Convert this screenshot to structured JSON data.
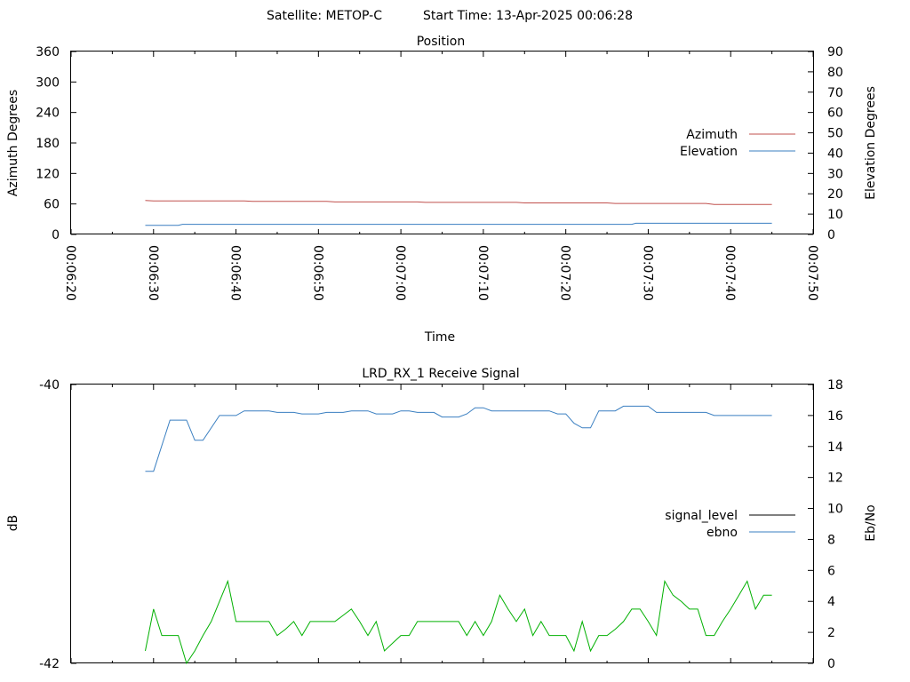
{
  "header": {
    "satellite": "Satellite: METOP-C",
    "start_time": "Start Time: 13-Apr-2025 00:06:28"
  },
  "chart_data": [
    {
      "type": "line",
      "title": "Position",
      "xlabel": "Time",
      "ylabel": "Azimuth Degrees",
      "y2label": "Elevation Degrees",
      "x_ticks": [
        "00:06:20",
        "00:06:30",
        "00:06:40",
        "00:06:50",
        "00:07:00",
        "00:07:10",
        "00:07:20",
        "00:07:30",
        "00:07:40",
        "00:07:50"
      ],
      "xlim": [
        380,
        470
      ],
      "ylim": [
        0,
        360
      ],
      "y_ticks": [
        0,
        60,
        120,
        180,
        240,
        300,
        360
      ],
      "y2lim": [
        0,
        90
      ],
      "y2_ticks": [
        0,
        10,
        20,
        30,
        40,
        50,
        60,
        70,
        80,
        90
      ],
      "legend_position": "right",
      "series": [
        {
          "name": "Azimuth",
          "axis": "y",
          "color": "#c0504d",
          "x": [
            389,
            390,
            401,
            402,
            411,
            412,
            422,
            423,
            434,
            435,
            445,
            446,
            457,
            458,
            465
          ],
          "values": [
            67,
            66,
            66,
            65,
            65,
            64,
            64,
            63,
            63,
            62,
            62,
            61,
            61,
            59,
            59
          ]
        },
        {
          "name": "Elevation",
          "axis": "y2",
          "color": "#3a7fc1",
          "x": [
            389,
            393,
            393.5,
            448,
            448.5,
            465
          ],
          "values": [
            4.5,
            4.5,
            5,
            5,
            5.5,
            5.5
          ]
        }
      ],
      "grid": false
    },
    {
      "type": "line",
      "title": "LRD_RX_1 Receive Signal",
      "xlabel": "",
      "ylabel": "dB",
      "y2label": "Eb/No",
      "xlim": [
        380,
        470
      ],
      "ylim": [
        -42,
        -40
      ],
      "y_ticks": [
        -42,
        -40
      ],
      "y2lim": [
        0,
        18
      ],
      "y2_ticks": [
        0,
        2,
        4,
        6,
        8,
        10,
        12,
        14,
        16,
        18
      ],
      "legend_position": "right",
      "series": [
        {
          "name": "signal_level",
          "axis": "y",
          "color": "#000000",
          "x": [],
          "values": []
        },
        {
          "name": "ebno",
          "axis": "y2",
          "color": "#3a7fc1",
          "x": [
            389,
            390,
            392,
            394,
            395,
            396,
            398,
            400,
            401,
            402,
            404,
            405,
            407,
            408,
            410,
            411,
            413,
            414,
            416,
            417,
            419,
            420,
            421,
            422,
            424,
            425,
            427,
            428,
            429,
            430,
            431,
            432,
            433,
            434,
            435,
            436,
            438,
            439,
            440,
            441,
            442,
            443,
            444,
            445,
            446,
            447,
            448,
            449,
            450,
            451,
            452,
            453,
            454,
            455,
            456,
            457,
            458,
            460,
            461,
            465
          ],
          "values": [
            12.4,
            12.4,
            15.7,
            15.7,
            14.4,
            14.4,
            16.0,
            16.0,
            16.3,
            16.3,
            16.3,
            16.2,
            16.2,
            16.1,
            16.1,
            16.2,
            16.2,
            16.3,
            16.3,
            16.1,
            16.1,
            16.3,
            16.3,
            16.2,
            16.2,
            15.9,
            15.9,
            16.1,
            16.5,
            16.5,
            16.3,
            16.3,
            16.3,
            16.3,
            16.3,
            16.3,
            16.3,
            16.1,
            16.1,
            15.5,
            15.2,
            15.2,
            16.3,
            16.3,
            16.3,
            16.6,
            16.6,
            16.6,
            16.6,
            16.2,
            16.2,
            16.2,
            16.2,
            16.2,
            16.2,
            16.2,
            16.0,
            16.0,
            16.0,
            16.0
          ]
        },
        {
          "name": "",
          "axis": "y2",
          "color": "#00b000",
          "x": [
            389,
            390,
            391,
            393,
            394,
            395,
            396,
            397,
            398,
            399,
            400,
            401,
            402,
            403,
            404,
            405,
            406,
            407,
            408,
            409,
            410,
            411,
            412,
            413,
            414,
            415,
            416,
            417,
            418,
            419,
            420,
            421,
            422,
            423,
            424,
            425,
            426,
            427,
            428,
            429,
            430,
            431,
            432,
            433,
            434,
            435,
            436,
            437,
            438,
            439,
            440,
            441,
            442,
            443,
            444,
            445,
            446,
            447,
            448,
            449,
            450,
            451,
            452,
            453,
            454,
            455,
            456,
            457,
            458,
            459,
            460,
            461,
            462,
            463,
            464,
            465
          ],
          "values": [
            0.8,
            3.5,
            1.8,
            1.8,
            0.0,
            0.8,
            1.8,
            2.7,
            4.0,
            5.3,
            2.7,
            2.7,
            2.7,
            2.7,
            2.7,
            1.8,
            2.2,
            2.7,
            1.8,
            2.7,
            2.7,
            2.7,
            2.7,
            3.1,
            3.5,
            2.7,
            1.8,
            2.7,
            0.8,
            1.3,
            1.8,
            1.8,
            2.7,
            2.7,
            2.7,
            2.7,
            2.7,
            2.7,
            1.8,
            2.7,
            1.8,
            2.7,
            4.4,
            3.5,
            2.7,
            3.5,
            1.8,
            2.7,
            1.8,
            1.8,
            1.8,
            0.8,
            2.7,
            0.8,
            1.8,
            1.8,
            2.2,
            2.7,
            3.5,
            3.5,
            2.7,
            1.8,
            5.3,
            4.4,
            4.0,
            3.5,
            3.5,
            1.8,
            1.8,
            2.7,
            3.5,
            4.4,
            5.3,
            3.5,
            4.4,
            4.4
          ]
        }
      ],
      "grid": false
    }
  ]
}
